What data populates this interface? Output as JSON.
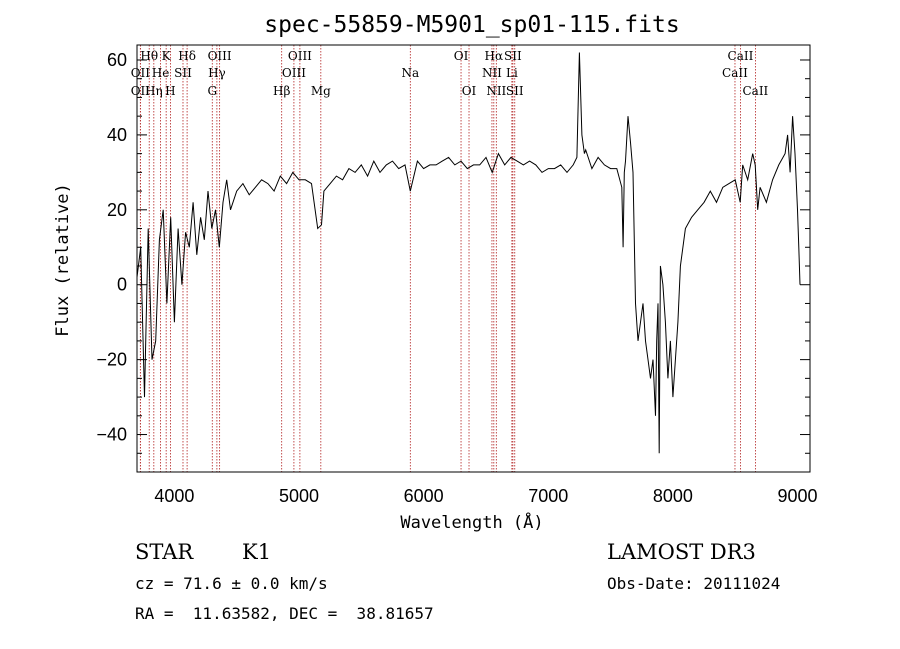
{
  "chart_data": {
    "type": "line",
    "title": "spec-55859-M5901_sp01-115.fits",
    "xlabel": "Wavelength (Å)",
    "ylabel": "Flux (relative)",
    "xlim": [
      3700,
      9100
    ],
    "ylim": [
      -50,
      64
    ],
    "x_ticks": [
      4000,
      5000,
      6000,
      7000,
      8000,
      9000
    ],
    "y_ticks": [
      -40,
      -20,
      0,
      20,
      40,
      60
    ],
    "grid": false,
    "line_color": "#000000",
    "marker_color": "#b22222",
    "spectral_lines": [
      {
        "label": "Hθ",
        "wavelength": 3798,
        "row": 0
      },
      {
        "label": "OII",
        "wavelength": 3727,
        "row": 1
      },
      {
        "label": "OII",
        "wavelength": 3727,
        "row": 2
      },
      {
        "label": "Hη",
        "wavelength": 3835,
        "row": 2
      },
      {
        "label": "He",
        "wavelength": 3889,
        "row": 1
      },
      {
        "label": "K",
        "wavelength": 3934,
        "row": 0
      },
      {
        "label": "H",
        "wavelength": 3968,
        "row": 2
      },
      {
        "label": "SII",
        "wavelength": 4069,
        "row": 1
      },
      {
        "label": "Hδ",
        "wavelength": 4102,
        "row": 0
      },
      {
        "label": "OIII",
        "wavelength": 4363,
        "row": 0
      },
      {
        "label": "Hγ",
        "wavelength": 4341,
        "row": 1
      },
      {
        "label": "G",
        "wavelength": 4304,
        "row": 2
      },
      {
        "label": "Hβ",
        "wavelength": 4861,
        "row": 2
      },
      {
        "label": "OIII",
        "wavelength": 5007,
        "row": 0
      },
      {
        "label": "OIII",
        "wavelength": 4959,
        "row": 1
      },
      {
        "label": "Mg",
        "wavelength": 5175,
        "row": 2
      },
      {
        "label": "Na",
        "wavelength": 5893,
        "row": 1
      },
      {
        "label": "OI",
        "wavelength": 6300,
        "row": 0
      },
      {
        "label": "OI",
        "wavelength": 6364,
        "row": 2
      },
      {
        "label": "Hα",
        "wavelength": 6563,
        "row": 0
      },
      {
        "label": "SII",
        "wavelength": 6716,
        "row": 0
      },
      {
        "label": "NII",
        "wavelength": 6548,
        "row": 1
      },
      {
        "label": "Li",
        "wavelength": 6708,
        "row": 1
      },
      {
        "label": "NII",
        "wavelength": 6583,
        "row": 2
      },
      {
        "label": "SII",
        "wavelength": 6731,
        "row": 2
      },
      {
        "label": "CaII",
        "wavelength": 8542,
        "row": 0
      },
      {
        "label": "CaII",
        "wavelength": 8498,
        "row": 1
      },
      {
        "label": "CaII",
        "wavelength": 8662,
        "row": 2
      }
    ],
    "spectrum": {
      "x": [
        3700,
        3730,
        3760,
        3790,
        3820,
        3850,
        3880,
        3910,
        3940,
        3970,
        4000,
        4030,
        4060,
        4090,
        4120,
        4150,
        4180,
        4210,
        4240,
        4270,
        4300,
        4330,
        4360,
        4390,
        4420,
        4450,
        4500,
        4550,
        4600,
        4650,
        4700,
        4750,
        4800,
        4850,
        4900,
        4950,
        5000,
        5050,
        5100,
        5150,
        5180,
        5200,
        5250,
        5300,
        5350,
        5400,
        5450,
        5500,
        5550,
        5600,
        5650,
        5700,
        5750,
        5800,
        5850,
        5893,
        5950,
        6000,
        6050,
        6100,
        6150,
        6200,
        6250,
        6300,
        6350,
        6400,
        6450,
        6500,
        6550,
        6600,
        6650,
        6700,
        6750,
        6800,
        6850,
        6900,
        6950,
        7000,
        7050,
        7100,
        7150,
        7200,
        7230,
        7250,
        7270,
        7290,
        7300,
        7350,
        7400,
        7450,
        7500,
        7550,
        7590,
        7600,
        7610,
        7620,
        7640,
        7660,
        7680,
        7700,
        7720,
        7740,
        7760,
        7780,
        7800,
        7820,
        7840,
        7860,
        7870,
        7880,
        7890,
        7900,
        7920,
        7940,
        7960,
        7980,
        8000,
        8020,
        8040,
        8060,
        8080,
        8100,
        8150,
        8200,
        8250,
        8300,
        8350,
        8400,
        8450,
        8500,
        8540,
        8560,
        8600,
        8640,
        8660,
        8680,
        8700,
        8750,
        8800,
        8850,
        8900,
        8920,
        8940,
        8960,
        8980,
        9000,
        9010,
        9020
      ],
      "y": [
        2,
        10,
        -30,
        15,
        -20,
        -15,
        12,
        20,
        -5,
        18,
        -10,
        15,
        0,
        14,
        10,
        22,
        8,
        18,
        12,
        25,
        15,
        20,
        10,
        22,
        28,
        20,
        25,
        27,
        24,
        26,
        28,
        27,
        25,
        29,
        27,
        30,
        28,
        28,
        27,
        15,
        16,
        25,
        27,
        29,
        28,
        31,
        30,
        32,
        29,
        33,
        30,
        32,
        33,
        31,
        32,
        25,
        33,
        31,
        32,
        32,
        33,
        34,
        32,
        33,
        31,
        32,
        32,
        34,
        30,
        35,
        32,
        34,
        33,
        32,
        33,
        32,
        30,
        31,
        31,
        32,
        30,
        32,
        34,
        62,
        40,
        35,
        36,
        31,
        34,
        32,
        31,
        31,
        26,
        10,
        30,
        33,
        45,
        38,
        30,
        -5,
        -15,
        -10,
        -5,
        -15,
        -20,
        -25,
        -20,
        -35,
        -15,
        -5,
        -45,
        5,
        0,
        -10,
        -25,
        -15,
        -30,
        -20,
        -10,
        5,
        10,
        15,
        18,
        20,
        22,
        25,
        22,
        26,
        27,
        28,
        22,
        32,
        28,
        35,
        32,
        20,
        26,
        22,
        28,
        32,
        35,
        40,
        30,
        45,
        35,
        20,
        10,
        0
      ]
    }
  },
  "info": {
    "object_class": "STAR",
    "subclass": "K1",
    "survey": "LAMOST DR3",
    "cz": "cz = 71.6 ± 0.0 km/s",
    "obs_date": "Obs-Date: 20111024",
    "coords": "RA =  11.63582, DEC =  38.81657"
  }
}
